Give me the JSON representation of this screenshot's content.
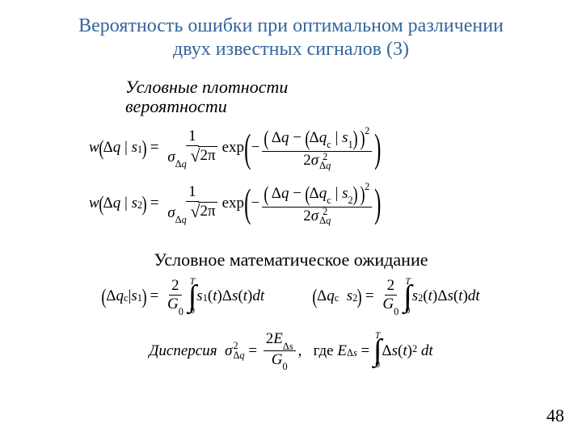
{
  "title_line1": "Вероятность ошибки при оптимальном различении",
  "title_line2": "двух известных сигналов (3)",
  "subheading1_line1": "Условные плотности",
  "subheading1_line2": "вероятности",
  "subheading2": "Условное математическое ожидание",
  "page_number": "48",
  "sym": {
    "w": "w",
    "Delta": "Δ",
    "q": "q",
    "s": "s",
    "one": "1",
    "two": "2",
    "sigma": "σ",
    "sqrt2pi": "2π",
    "exp": "exp",
    "qc": "q",
    "c": "с",
    "sq": "2",
    "twoSigma": "2σ",
    "G0": "G",
    "zero": "0",
    "T": "T",
    "t": "t",
    "dt": "dt",
    "dispersion": "Дисперсия",
    "where": "где",
    "E": "E",
    "comma": ",",
    "eq": "=",
    "minus": "−",
    "two_num": "2"
  }
}
